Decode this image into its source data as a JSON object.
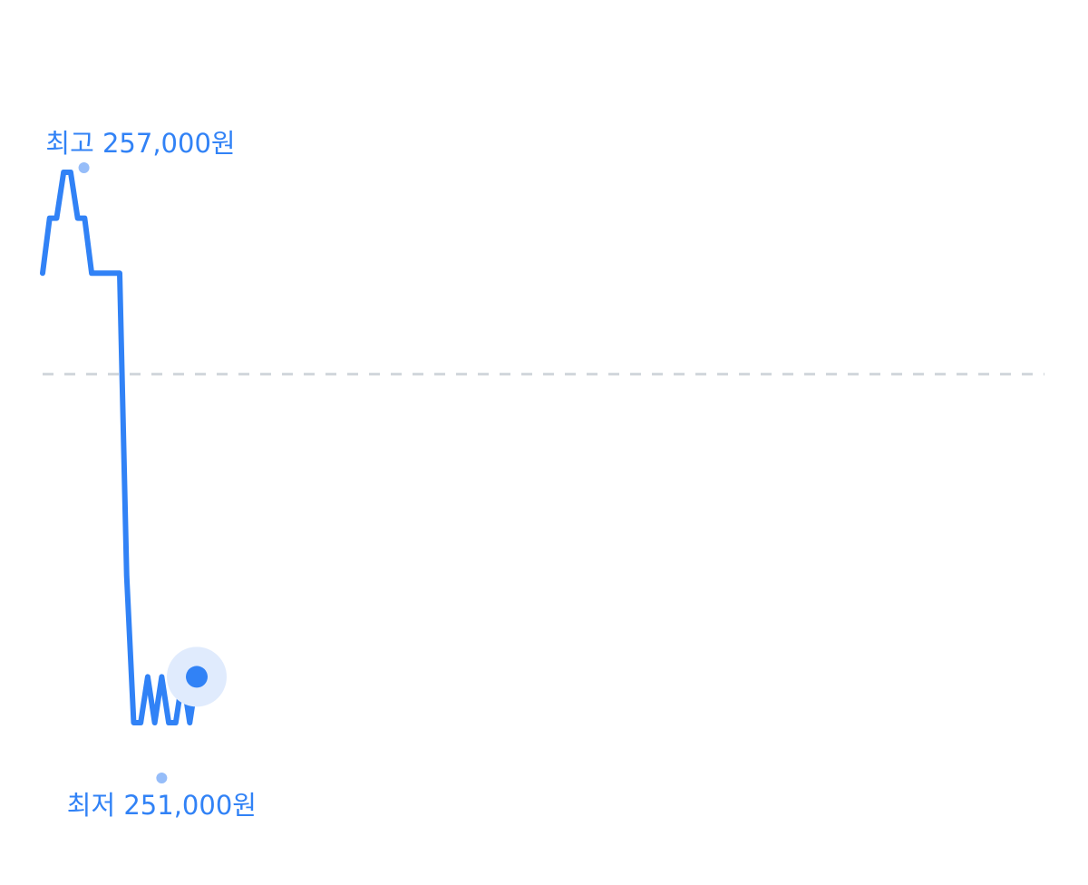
{
  "chart_data": {
    "type": "line",
    "title": "",
    "xlabel": "",
    "ylabel": "",
    "ylim": [
      251000,
      257000
    ],
    "xlim": [
      0,
      143
    ],
    "grid": false,
    "reference_line": {
      "value": 254800,
      "style": "dashed",
      "color": "#d1d6db"
    },
    "series": [
      {
        "color": "#3182f6",
        "values": [
          255900,
          256500,
          256500,
          257000,
          257000,
          256500,
          256500,
          255900,
          255900,
          255900,
          255900,
          255900,
          252600,
          251000,
          251000,
          251500,
          251000,
          251500,
          251000,
          251000,
          251500,
          251000,
          251500
        ]
      }
    ],
    "annotations": {
      "high_label": "최고 257,000원",
      "low_label": "최저 251,000원",
      "high_index": 5.9,
      "low_index": 17
    },
    "marker_color": "#96bdf9",
    "current_point_halo": "#e0ebfd"
  }
}
